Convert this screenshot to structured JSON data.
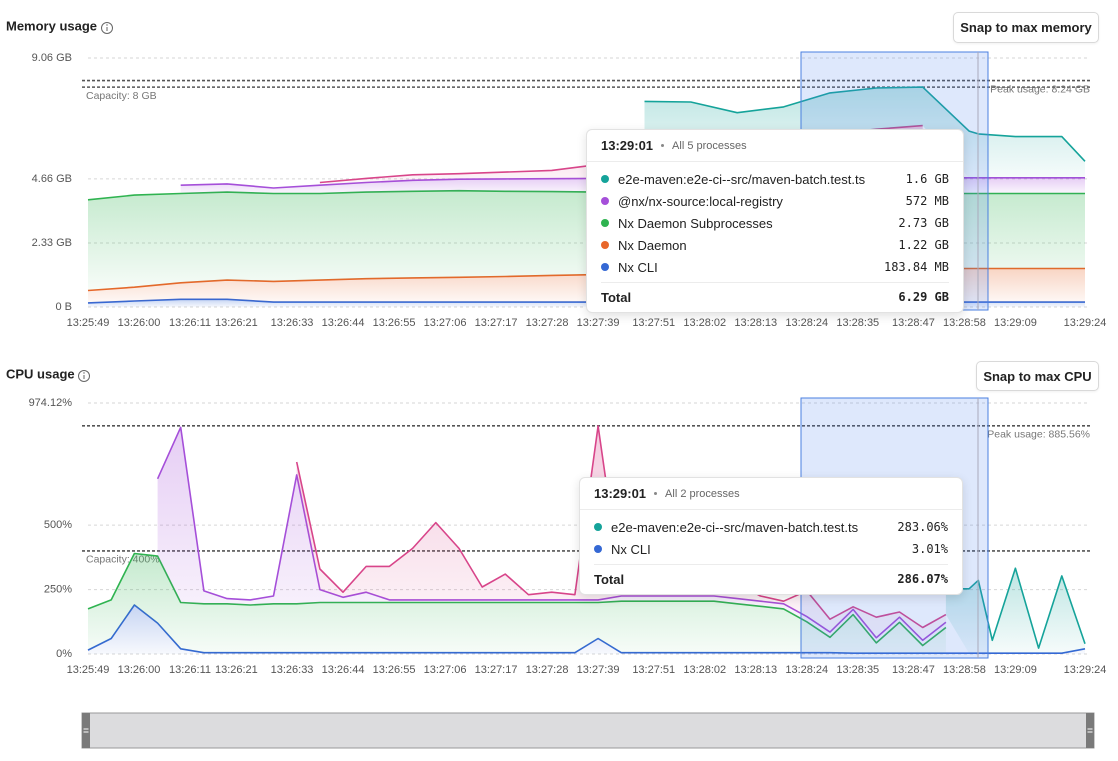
{
  "chart_data": [
    {
      "type": "area",
      "stacked": true,
      "title": "Memory usage",
      "button": "Snap to max memory",
      "grid": true,
      "x": [
        0,
        10,
        20,
        30,
        40,
        50,
        60,
        70,
        80,
        90,
        100,
        110,
        120,
        130,
        140,
        150,
        160,
        170,
        180,
        190,
        192,
        200,
        210,
        215
      ],
      "xlim": [
        0,
        215
      ],
      "xticks": [
        {
          "value": 0,
          "label": "13:25:49"
        },
        {
          "value": 11,
          "label": "13:26:00"
        },
        {
          "value": 22,
          "label": "13:26:11"
        },
        {
          "value": 32,
          "label": "13:26:21"
        },
        {
          "value": 44,
          "label": "13:26:33"
        },
        {
          "value": 55,
          "label": "13:26:44"
        },
        {
          "value": 66,
          "label": "13:26:55"
        },
        {
          "value": 77,
          "label": "13:27:06"
        },
        {
          "value": 88,
          "label": "13:27:17"
        },
        {
          "value": 99,
          "label": "13:27:28"
        },
        {
          "value": 110,
          "label": "13:27:39"
        },
        {
          "value": 122,
          "label": "13:27:51"
        },
        {
          "value": 133,
          "label": "13:28:02"
        },
        {
          "value": 144,
          "label": "13:28:13"
        },
        {
          "value": 155,
          "label": "13:28:24"
        },
        {
          "value": 166,
          "label": "13:28:35"
        },
        {
          "value": 178,
          "label": "13:28:47"
        },
        {
          "value": 189,
          "label": "13:28:58"
        },
        {
          "value": 200,
          "label": "13:29:09"
        },
        {
          "value": 215,
          "label": "13:29:24"
        }
      ],
      "ylim": [
        0,
        9.06
      ],
      "yticks": [
        {
          "value": 0,
          "label": "0 B"
        },
        {
          "value": 2.33,
          "label": "2.33 GB"
        },
        {
          "value": 4.66,
          "label": "4.66 GB"
        },
        {
          "value": 9.06,
          "label": "9.06 GB"
        }
      ],
      "capacity": {
        "value": 8,
        "label": "Capacity: 8 GB"
      },
      "peak": {
        "value": 8.24,
        "label": "Peak usage: 8.24 GB"
      },
      "series": [
        {
          "name": "Nx CLI",
          "color": "#3568d4",
          "values": [
            0.15,
            0.22,
            0.28,
            0.28,
            0.18,
            0.18,
            0.18,
            0.18,
            0.18,
            0.18,
            0.18,
            0.18,
            0.18,
            0.18,
            0.18,
            0.18,
            0.18,
            0.18,
            0.18,
            0.18,
            0.18,
            0.18,
            0.18,
            0.18
          ]
        },
        {
          "name": "Nx Daemon",
          "color": "#e8672a",
          "values": [
            0.45,
            0.5,
            0.6,
            0.7,
            0.75,
            0.8,
            0.85,
            0.88,
            0.9,
            0.93,
            0.97,
            1.0,
            1.03,
            1.05,
            1.1,
            1.15,
            1.2,
            1.2,
            1.22,
            1.22,
            1.22,
            1.22,
            1.22,
            1.22
          ]
        },
        {
          "name": "Nx Daemon Subprocesses",
          "color": "#2fb350",
          "values": [
            3.3,
            3.35,
            3.25,
            3.2,
            3.2,
            3.15,
            3.15,
            3.15,
            3.15,
            3.1,
            3.05,
            3.0,
            2.95,
            2.9,
            2.85,
            2.8,
            2.75,
            2.73,
            2.73,
            2.73,
            2.73,
            2.73,
            2.73,
            2.73
          ]
        },
        {
          "name": "@nx/nx-source:local-registry",
          "color": "#a54fd9",
          "values": [
            null,
            null,
            0.3,
            0.3,
            0.2,
            0.3,
            0.35,
            0.4,
            0.42,
            0.45,
            0.47,
            0.5,
            0.52,
            0.53,
            0.54,
            0.55,
            0.56,
            0.56,
            0.57,
            0.57,
            0.57,
            0.57,
            0.57,
            0.57
          ]
        },
        {
          "color": "#d8458a",
          "values": [
            null,
            null,
            null,
            null,
            null,
            0.1,
            0.15,
            0.2,
            0.2,
            0.25,
            0.3,
            0.5,
            0.8,
            1.0,
            1.2,
            1.4,
            1.6,
            1.8,
            1.9,
            null,
            null,
            null,
            null,
            null
          ]
        },
        {
          "name": "e2e-maven:e2e-ci--src/maven-batch.test.ts",
          "color": "#15a39a",
          "values": [
            null,
            null,
            null,
            null,
            null,
            null,
            null,
            null,
            null,
            null,
            null,
            null,
            2.0,
            1.8,
            1.2,
            1.2,
            1.5,
            1.5,
            1.4,
            1.7,
            1.6,
            1.5,
            1.5,
            0.6
          ]
        }
      ],
      "tooltip": {
        "time": "13:29:01",
        "summary": "All 5 processes",
        "rows": [
          {
            "name": "e2e-maven:e2e-ci--src/maven-batch.test.ts",
            "value": "1.6 GB"
          },
          {
            "name": "@nx/nx-source:local-registry",
            "value": "572 MB"
          },
          {
            "name": "Nx Daemon Subprocesses",
            "value": "2.73 GB"
          },
          {
            "name": "Nx Daemon",
            "value": "1.22 GB"
          },
          {
            "name": "Nx CLI",
            "value": "183.84 MB"
          }
        ],
        "total_label": "Total",
        "total": "6.29 GB"
      }
    },
    {
      "type": "area",
      "stacked": true,
      "title": "CPU usage",
      "button": "Snap to max CPU",
      "grid": true,
      "x": [
        0,
        5,
        10,
        15,
        20,
        25,
        30,
        35,
        40,
        45,
        50,
        55,
        60,
        65,
        70,
        75,
        80,
        85,
        90,
        95,
        100,
        105,
        110,
        115,
        120,
        125,
        130,
        135,
        140,
        145,
        150,
        155,
        160,
        165,
        170,
        175,
        180,
        185,
        190,
        192,
        195,
        200,
        205,
        210,
        215
      ],
      "xlim": [
        0,
        215
      ],
      "xticks": [
        {
          "value": 0,
          "label": "13:25:49"
        },
        {
          "value": 11,
          "label": "13:26:00"
        },
        {
          "value": 22,
          "label": "13:26:11"
        },
        {
          "value": 32,
          "label": "13:26:21"
        },
        {
          "value": 44,
          "label": "13:26:33"
        },
        {
          "value": 55,
          "label": "13:26:44"
        },
        {
          "value": 66,
          "label": "13:26:55"
        },
        {
          "value": 77,
          "label": "13:27:06"
        },
        {
          "value": 88,
          "label": "13:27:17"
        },
        {
          "value": 99,
          "label": "13:27:28"
        },
        {
          "value": 110,
          "label": "13:27:39"
        },
        {
          "value": 122,
          "label": "13:27:51"
        },
        {
          "value": 133,
          "label": "13:28:02"
        },
        {
          "value": 144,
          "label": "13:28:13"
        },
        {
          "value": 155,
          "label": "13:28:24"
        },
        {
          "value": 166,
          "label": "13:28:35"
        },
        {
          "value": 178,
          "label": "13:28:47"
        },
        {
          "value": 189,
          "label": "13:28:58"
        },
        {
          "value": 200,
          "label": "13:29:09"
        },
        {
          "value": 215,
          "label": "13:29:24"
        }
      ],
      "ylim": [
        0,
        974.12
      ],
      "yticks": [
        {
          "value": 0,
          "label": "0%"
        },
        {
          "value": 250,
          "label": "250%"
        },
        {
          "value": 500,
          "label": "500%"
        },
        {
          "value": 974.12,
          "label": "974.12%"
        }
      ],
      "capacity": {
        "value": 400,
        "label": "Capacity: 400%"
      },
      "peak": {
        "value": 885.56,
        "label": "Peak usage: 885.56%"
      },
      "series": [
        {
          "name": "Nx CLI",
          "color": "#3568d4",
          "values": [
            15,
            60,
            190,
            120,
            20,
            5,
            5,
            5,
            5,
            5,
            5,
            5,
            5,
            5,
            5,
            5,
            5,
            5,
            5,
            5,
            5,
            5,
            60,
            5,
            5,
            5,
            5,
            5,
            5,
            5,
            5,
            5,
            5,
            3,
            3,
            3,
            3,
            3,
            3,
            3.01,
            3,
            3,
            3,
            3,
            20
          ]
        },
        {
          "name": "Nx Daemon Subprocesses",
          "color": "#2fb350",
          "values": [
            160,
            150,
            200,
            260,
            180,
            190,
            190,
            185,
            190,
            190,
            195,
            195,
            195,
            195,
            195,
            195,
            195,
            195,
            195,
            195,
            195,
            195,
            140,
            200,
            200,
            200,
            200,
            200,
            190,
            180,
            170,
            120,
            60,
            150,
            40,
            120,
            30,
            100,
            null,
            null,
            null,
            null,
            null,
            null,
            null
          ]
        },
        {
          "name": "@nx/nx-source:local-registry",
          "color": "#a54fd9",
          "values": [
            null,
            null,
            null,
            300,
            680,
            50,
            20,
            20,
            30,
            500,
            50,
            20,
            40,
            10,
            10,
            10,
            10,
            10,
            10,
            10,
            10,
            10,
            10,
            20,
            20,
            20,
            20,
            20,
            20,
            20,
            20,
            20,
            20,
            20,
            20,
            20,
            20,
            20,
            null,
            null,
            null,
            null,
            null,
            null,
            null
          ]
        },
        {
          "color": "#d8458a",
          "values": [
            null,
            null,
            null,
            null,
            null,
            null,
            null,
            null,
            null,
            50,
            80,
            20,
            100,
            130,
            200,
            300,
            200,
            50,
            100,
            20,
            30,
            20,
            675,
            30,
            20,
            40,
            100,
            30,
            60,
            20,
            10,
            100,
            50,
            10,
            80,
            20,
            50,
            30,
            null,
            null,
            null,
            null,
            null,
            null,
            null
          ]
        },
        {
          "name": "e2e-maven:e2e-ci--src/maven-batch.test.ts",
          "color": "#15a39a",
          "values": [
            null,
            null,
            null,
            null,
            null,
            null,
            null,
            null,
            null,
            null,
            null,
            null,
            null,
            null,
            null,
            null,
            null,
            null,
            null,
            null,
            null,
            null,
            null,
            null,
            null,
            null,
            null,
            null,
            null,
            null,
            null,
            null,
            null,
            null,
            null,
            null,
            null,
            100,
            250,
            283.06,
            50,
            330,
            20,
            300,
            20
          ]
        }
      ],
      "tooltip": {
        "time": "13:29:01",
        "summary": "All 2 processes",
        "rows": [
          {
            "name": "e2e-maven:e2e-ci--src/maven-batch.test.ts",
            "value": "283.06%"
          },
          {
            "name": "Nx CLI",
            "value": "3.01%"
          }
        ],
        "total_label": "Total",
        "total": "286.07%"
      }
    }
  ]
}
